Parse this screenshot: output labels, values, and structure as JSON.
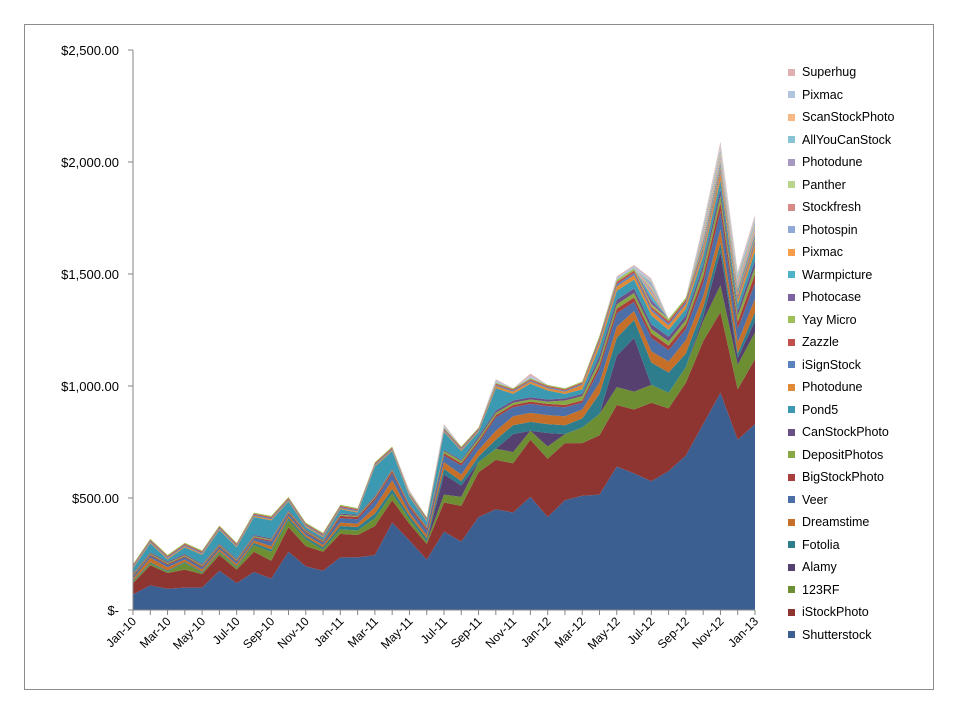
{
  "chart_data": {
    "type": "area",
    "stacked": true,
    "ylim": [
      0,
      2500
    ],
    "y_ticks": [
      {
        "value": 0,
        "label": "$-"
      },
      {
        "value": 500,
        "label": "$500.00"
      },
      {
        "value": 1000,
        "label": "$1,000.00"
      },
      {
        "value": 1500,
        "label": "$1,500.00"
      },
      {
        "value": 2000,
        "label": "$2,000.00"
      },
      {
        "value": 2500,
        "label": "$2,500.00"
      }
    ],
    "x": [
      "Jan-10",
      "Feb-10",
      "Mar-10",
      "Apr-10",
      "May-10",
      "Jun-10",
      "Jul-10",
      "Aug-10",
      "Sep-10",
      "Oct-10",
      "Nov-10",
      "Dec-10",
      "Jan-11",
      "Feb-11",
      "Mar-11",
      "Apr-11",
      "May-11",
      "Jun-11",
      "Jul-11",
      "Aug-11",
      "Sep-11",
      "Oct-11",
      "Nov-11",
      "Dec-11",
      "Jan-12",
      "Feb-12",
      "Mar-12",
      "Apr-12",
      "May-12",
      "Jun-12",
      "Jul-12",
      "Aug-12",
      "Sep-12",
      "Oct-12",
      "Nov-12",
      "Dec-12",
      "Jan-13"
    ],
    "x_tick_labels": [
      "Jan-10",
      "Mar-10",
      "May-10",
      "Jul-10",
      "Sep-10",
      "Nov-10",
      "Jan-11",
      "Mar-11",
      "May-11",
      "Jul-11",
      "Sep-11",
      "Nov-11",
      "Jan-12",
      "Mar-12",
      "May-12",
      "Jul-12",
      "Sep-12",
      "Nov-12",
      "Jan-13"
    ],
    "legend_position": "right",
    "grid": false,
    "series": [
      {
        "name": "Shutterstock",
        "color": "#3c5f92",
        "values": [
          70,
          110,
          95,
          100,
          100,
          175,
          120,
          170,
          140,
          260,
          195,
          175,
          235,
          235,
          245,
          390,
          310,
          225,
          350,
          305,
          415,
          450,
          435,
          505,
          415,
          490,
          510,
          515,
          640,
          610,
          575,
          620,
          690,
          830,
          970,
          760,
          830
        ]
      },
      {
        "name": "iStockPhoto",
        "color": "#8e3532",
        "values": [
          50,
          90,
          70,
          80,
          60,
          70,
          60,
          90,
          80,
          110,
          90,
          85,
          105,
          100,
          130,
          100,
          75,
          70,
          130,
          160,
          200,
          220,
          220,
          255,
          260,
          255,
          235,
          265,
          275,
          285,
          350,
          280,
          325,
          370,
          360,
          225,
          290
        ]
      },
      {
        "name": "123RF",
        "color": "#6e8e33",
        "values": [
          5,
          8,
          6,
          30,
          6,
          12,
          10,
          30,
          40,
          30,
          30,
          10,
          20,
          20,
          35,
          30,
          20,
          10,
          35,
          40,
          45,
          50,
          50,
          40,
          55,
          40,
          70,
          95,
          80,
          80,
          80,
          70,
          70,
          90,
          120,
          110,
          120
        ]
      },
      {
        "name": "Alamy",
        "color": "#55406f",
        "values": [
          0,
          0,
          0,
          0,
          0,
          0,
          0,
          0,
          0,
          0,
          0,
          0,
          0,
          0,
          0,
          0,
          0,
          0,
          90,
          50,
          0,
          0,
          80,
          0,
          60,
          0,
          0,
          0,
          140,
          240,
          0,
          0,
          0,
          20,
          150,
          30,
          50
        ]
      },
      {
        "name": "Fotolia",
        "color": "#2d7d8c",
        "values": [
          5,
          5,
          5,
          5,
          5,
          5,
          5,
          10,
          10,
          10,
          10,
          10,
          15,
          15,
          20,
          20,
          15,
          15,
          25,
          20,
          25,
          40,
          40,
          40,
          40,
          40,
          40,
          90,
          80,
          80,
          100,
          90,
          60,
          40,
          40,
          20,
          40
        ]
      },
      {
        "name": "Dreamstime",
        "color": "#c56f29",
        "values": [
          10,
          20,
          15,
          10,
          10,
          10,
          10,
          10,
          15,
          10,
          10,
          10,
          15,
          15,
          30,
          40,
          15,
          15,
          30,
          30,
          30,
          40,
          40,
          40,
          40,
          40,
          40,
          50,
          50,
          40,
          50,
          50,
          60,
          50,
          60,
          50,
          60
        ]
      },
      {
        "name": "Veer",
        "color": "#4b6fa6",
        "values": [
          10,
          10,
          10,
          10,
          10,
          10,
          10,
          10,
          20,
          10,
          10,
          10,
          20,
          20,
          30,
          30,
          20,
          20,
          30,
          40,
          30,
          60,
          40,
          40,
          40,
          40,
          30,
          60,
          60,
          40,
          60,
          50,
          50,
          60,
          80,
          60,
          70
        ]
      },
      {
        "name": "BigStockPhoto",
        "color": "#a83f3c",
        "values": [
          5,
          5,
          5,
          5,
          5,
          5,
          5,
          5,
          5,
          5,
          5,
          5,
          10,
          10,
          10,
          10,
          10,
          10,
          10,
          10,
          10,
          10,
          10,
          10,
          10,
          10,
          10,
          20,
          20,
          20,
          20,
          20,
          20,
          30,
          40,
          30,
          40
        ]
      },
      {
        "name": "DepositPhotos",
        "color": "#88a844",
        "values": [
          5,
          5,
          5,
          5,
          5,
          5,
          5,
          5,
          5,
          5,
          5,
          5,
          5,
          5,
          5,
          5,
          5,
          5,
          10,
          10,
          10,
          10,
          10,
          10,
          10,
          20,
          20,
          20,
          20,
          20,
          20,
          20,
          20,
          30,
          30,
          30,
          30
        ]
      },
      {
        "name": "CanStockPhoto",
        "color": "#6b5087",
        "values": [
          5,
          5,
          5,
          5,
          5,
          5,
          5,
          5,
          5,
          5,
          5,
          5,
          5,
          5,
          5,
          5,
          5,
          5,
          5,
          5,
          10,
          10,
          10,
          10,
          10,
          10,
          10,
          20,
          20,
          20,
          20,
          20,
          20,
          20,
          30,
          20,
          30
        ]
      },
      {
        "name": "Pond5",
        "color": "#3b9ab1",
        "values": [
          20,
          40,
          10,
          30,
          40,
          60,
          50,
          80,
          80,
          40,
          10,
          10,
          20,
          10,
          130,
          80,
          30,
          20,
          80,
          40,
          20,
          100,
          30,
          60,
          40,
          20,
          20,
          40,
          40,
          40,
          40,
          30,
          30,
          40,
          40,
          30,
          40
        ]
      },
      {
        "name": "Photodune",
        "color": "#e08a37",
        "values": [
          5,
          5,
          5,
          5,
          5,
          5,
          5,
          5,
          5,
          5,
          5,
          5,
          5,
          5,
          5,
          5,
          5,
          5,
          5,
          5,
          5,
          10,
          10,
          10,
          10,
          10,
          20,
          20,
          20,
          20,
          20,
          20,
          20,
          20,
          30,
          20,
          30
        ]
      },
      {
        "name": "iSignStock",
        "color": "#5a82bc",
        "values": [
          5,
          5,
          5,
          5,
          5,
          5,
          5,
          5,
          5,
          5,
          5,
          5,
          5,
          5,
          5,
          5,
          5,
          5,
          5,
          5,
          5,
          5,
          5,
          5,
          5,
          5,
          5,
          10,
          10,
          10,
          10,
          10,
          10,
          10,
          10,
          10,
          10
        ]
      },
      {
        "name": "Zazzle",
        "color": "#c14f4b",
        "values": [
          5,
          5,
          5,
          5,
          5,
          5,
          5,
          5,
          5,
          5,
          5,
          5,
          5,
          5,
          5,
          5,
          5,
          5,
          5,
          5,
          5,
          5,
          5,
          5,
          5,
          5,
          5,
          10,
          10,
          10,
          10,
          10,
          10,
          10,
          10,
          10,
          10
        ]
      },
      {
        "name": "Yay Micro",
        "color": "#9dc058",
        "values": [
          5,
          5,
          5,
          5,
          5,
          5,
          5,
          5,
          5,
          5,
          5,
          5,
          5,
          5,
          5,
          5,
          5,
          5,
          5,
          5,
          5,
          5,
          5,
          5,
          5,
          5,
          5,
          10,
          10,
          10,
          10,
          10,
          10,
          10,
          10,
          10,
          10
        ]
      },
      {
        "name": "Photocase",
        "color": "#7e63a1",
        "values": [
          0,
          0,
          0,
          0,
          0,
          0,
          0,
          0,
          0,
          0,
          0,
          0,
          0,
          0,
          0,
          0,
          0,
          0,
          0,
          0,
          0,
          0,
          0,
          0,
          0,
          0,
          0,
          0,
          0,
          0,
          20,
          0,
          0,
          10,
          10,
          10,
          10
        ]
      },
      {
        "name": "Warmpicture",
        "color": "#4eb3c9",
        "values": [
          0,
          0,
          0,
          0,
          0,
          0,
          0,
          0,
          0,
          0,
          0,
          0,
          0,
          0,
          0,
          0,
          0,
          0,
          0,
          0,
          0,
          0,
          0,
          0,
          0,
          0,
          0,
          0,
          0,
          0,
          20,
          0,
          0,
          10,
          10,
          10,
          10
        ]
      },
      {
        "name": "Pixmac",
        "color": "#f59d4a",
        "values": [
          0,
          0,
          0,
          0,
          0,
          0,
          0,
          0,
          0,
          0,
          0,
          0,
          0,
          0,
          0,
          0,
          0,
          0,
          0,
          0,
          0,
          0,
          0,
          0,
          0,
          0,
          0,
          0,
          0,
          0,
          10,
          0,
          0,
          10,
          10,
          10,
          10
        ]
      },
      {
        "name": "Photospin",
        "color": "#91a9d6",
        "values": [
          0,
          0,
          0,
          0,
          0,
          0,
          0,
          0,
          0,
          0,
          0,
          0,
          0,
          0,
          0,
          0,
          0,
          0,
          0,
          0,
          0,
          0,
          0,
          0,
          0,
          0,
          0,
          0,
          0,
          0,
          10,
          0,
          0,
          10,
          10,
          10,
          10
        ]
      },
      {
        "name": "Stockfresh",
        "color": "#d88a87",
        "values": [
          0,
          0,
          0,
          0,
          0,
          0,
          0,
          0,
          0,
          0,
          0,
          0,
          0,
          0,
          0,
          0,
          0,
          0,
          0,
          0,
          0,
          0,
          0,
          0,
          0,
          0,
          0,
          0,
          0,
          0,
          10,
          0,
          0,
          10,
          10,
          10,
          10
        ]
      },
      {
        "name": "Panther",
        "color": "#b8d58d",
        "values": [
          0,
          0,
          0,
          0,
          0,
          0,
          0,
          0,
          0,
          0,
          0,
          0,
          0,
          0,
          0,
          0,
          0,
          0,
          0,
          0,
          0,
          0,
          0,
          0,
          0,
          0,
          0,
          0,
          0,
          0,
          10,
          0,
          0,
          10,
          10,
          10,
          10
        ]
      },
      {
        "name": "Photodune",
        "color": "#a798c1",
        "values": [
          0,
          0,
          0,
          0,
          0,
          0,
          0,
          0,
          0,
          0,
          0,
          0,
          0,
          0,
          0,
          0,
          0,
          0,
          0,
          0,
          0,
          0,
          0,
          0,
          0,
          0,
          0,
          0,
          0,
          0,
          10,
          0,
          0,
          10,
          10,
          10,
          10
        ]
      },
      {
        "name": "AllYouCanStock",
        "color": "#89c3d6",
        "values": [
          0,
          0,
          0,
          0,
          0,
          0,
          0,
          0,
          0,
          0,
          0,
          0,
          0,
          0,
          0,
          0,
          0,
          0,
          0,
          0,
          0,
          0,
          0,
          0,
          0,
          0,
          0,
          0,
          0,
          0,
          10,
          0,
          0,
          10,
          10,
          10,
          10
        ]
      },
      {
        "name": "ScanStockPhoto",
        "color": "#f6b986",
        "values": [
          0,
          0,
          0,
          0,
          0,
          0,
          0,
          0,
          0,
          0,
          0,
          0,
          0,
          0,
          0,
          0,
          0,
          0,
          0,
          0,
          0,
          0,
          0,
          0,
          0,
          0,
          0,
          0,
          0,
          0,
          5,
          0,
          0,
          5,
          10,
          5,
          10
        ]
      },
      {
        "name": "Pixmac",
        "color": "#b3c4de",
        "values": [
          0,
          0,
          0,
          0,
          0,
          0,
          0,
          0,
          0,
          0,
          0,
          0,
          0,
          0,
          0,
          0,
          5,
          0,
          10,
          0,
          0,
          10,
          0,
          10,
          0,
          0,
          0,
          0,
          10,
          10,
          5,
          0,
          0,
          5,
          10,
          5,
          10
        ]
      },
      {
        "name": "Superhug",
        "color": "#e0b0b0",
        "values": [
          0,
          0,
          0,
          0,
          0,
          0,
          0,
          0,
          0,
          0,
          0,
          0,
          0,
          0,
          0,
          0,
          5,
          0,
          5,
          0,
          0,
          5,
          0,
          10,
          0,
          0,
          0,
          0,
          5,
          5,
          5,
          0,
          0,
          5,
          10,
          5,
          5
        ]
      }
    ]
  }
}
